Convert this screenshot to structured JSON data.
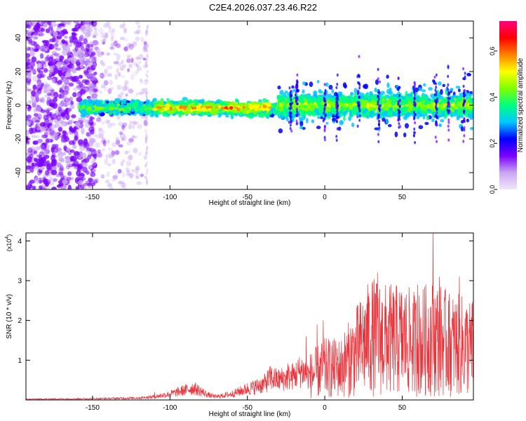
{
  "title": "C2E4.2026.037.23.46.R22",
  "chart_data": [
    {
      "type": "heatmap",
      "xlabel": "Height of straight line (km)",
      "ylabel": "Frequency (Hz)",
      "xlim": [
        -193,
        96
      ],
      "ylim": [
        -50,
        50
      ],
      "xticks": [
        -150,
        -100,
        -50,
        0,
        50
      ],
      "yticks": [
        -40,
        -20,
        0,
        20,
        40
      ],
      "colorbar": {
        "label": "Normalized spectral amplitude",
        "range": [
          0.0,
          0.73
        ],
        "ticks": [
          0.0,
          0.2,
          0.4,
          0.6
        ],
        "colormap": [
          "#f0e6fa",
          "#c9a6f2",
          "#7a00ff",
          "#0000ff",
          "#00c8ff",
          "#00ff80",
          "#80ff00",
          "#ffff00",
          "#ff8000",
          "#ff0000",
          "#ff0080"
        ]
      },
      "bands": [
        {
          "x": [
            -193,
            -150
          ],
          "y": [
            -50,
            50
          ],
          "density": "scattered",
          "amplitude": "low"
        },
        {
          "x": [
            -150,
            -115
          ],
          "y": [
            -50,
            50
          ],
          "density": "sparse",
          "amplitude": "very low"
        },
        {
          "x": [
            -158,
            -20
          ],
          "y": [
            -8,
            6
          ],
          "density": "dense",
          "amplitude": "high"
        },
        {
          "x": [
            -30,
            96
          ],
          "y": [
            -25,
            20
          ],
          "density": "dense",
          "amplitude": "medium"
        }
      ]
    },
    {
      "type": "line",
      "xlabel": "Height of straight line (km)",
      "ylabel": "SNR (10 * v/v)",
      "exponent_label": "(x10",
      "exponent_power": "4",
      "exponent_close": ")",
      "xlim": [
        -193,
        96
      ],
      "ylim": [
        0,
        4.2
      ],
      "xticks": [
        -150,
        -100,
        -50,
        0,
        50
      ],
      "yticks": [
        1,
        2,
        3,
        4
      ],
      "color": "#e8333a",
      "series": [
        {
          "x": [
            -193,
            -150,
            -120,
            -110,
            -100,
            -90,
            -85,
            -80,
            -75,
            -70,
            -60,
            -50,
            -40,
            -35,
            -30,
            -20,
            -15,
            -10,
            0,
            10,
            20,
            30,
            40,
            50,
            60,
            70,
            80,
            90,
            96
          ],
          "y": [
            0.02,
            0.03,
            0.05,
            0.08,
            0.15,
            0.25,
            0.3,
            0.22,
            0.12,
            0.08,
            0.15,
            0.28,
            0.38,
            0.55,
            0.5,
            0.6,
            0.75,
            0.6,
            0.8,
            0.8,
            1.2,
            1.6,
            1.5,
            1.5,
            1.4,
            1.6,
            1.4,
            1.35,
            1.3
          ],
          "peaks": [
            [
              -110,
              0.2
            ],
            [
              -84,
              0.4
            ],
            [
              -42,
              0.48
            ],
            [
              -35,
              0.85
            ],
            [
              -24,
              0.92
            ],
            [
              -12,
              1.6
            ],
            [
              -5,
              1.9
            ],
            [
              -1,
              2.0
            ],
            [
              8,
              1.3
            ],
            [
              18,
              1.8
            ],
            [
              28,
              2.6
            ],
            [
              34,
              3.2
            ],
            [
              42,
              2.85
            ],
            [
              52,
              2.35
            ],
            [
              60,
              2.9
            ],
            [
              70,
              4.2
            ],
            [
              74,
              3.1
            ],
            [
              80,
              2.5
            ],
            [
              87,
              3.1
            ],
            [
              94,
              2.0
            ]
          ]
        }
      ]
    }
  ]
}
